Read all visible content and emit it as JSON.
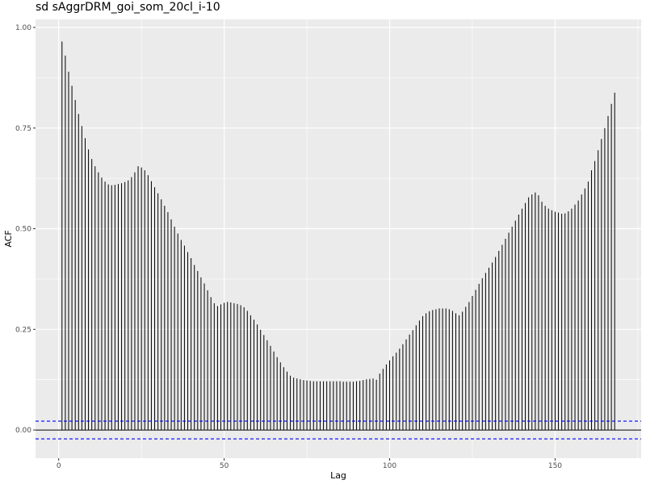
{
  "chart_data": {
    "type": "bar",
    "title": "sd sAggrDRM_goi_som_20cl_i-10",
    "xlabel": "Lag",
    "ylabel": "ACF",
    "xlim": [
      -7,
      176
    ],
    "ylim": [
      -0.07,
      1.02
    ],
    "x_ticks": [
      0,
      50,
      100,
      150
    ],
    "x_tick_labels": [
      "0",
      "50",
      "100",
      "150"
    ],
    "y_ticks": [
      0.0,
      0.25,
      0.5,
      0.75,
      1.0
    ],
    "y_tick_labels": [
      "0.00",
      "0.25",
      "0.50",
      "0.75",
      "1.00"
    ],
    "confidence_bound": 0.022,
    "grid": true,
    "background": "#ebebeb",
    "bar_color": "#000000",
    "ci_color": "#0000ff",
    "x": [
      1,
      2,
      3,
      4,
      5,
      6,
      7,
      8,
      9,
      10,
      11,
      12,
      13,
      14,
      15,
      16,
      17,
      18,
      19,
      20,
      21,
      22,
      23,
      24,
      25,
      26,
      27,
      28,
      29,
      30,
      31,
      32,
      33,
      34,
      35,
      36,
      37,
      38,
      39,
      40,
      41,
      42,
      43,
      44,
      45,
      46,
      47,
      48,
      49,
      50,
      51,
      52,
      53,
      54,
      55,
      56,
      57,
      58,
      59,
      60,
      61,
      62,
      63,
      64,
      65,
      66,
      67,
      68,
      69,
      70,
      71,
      72,
      73,
      74,
      75,
      76,
      77,
      78,
      79,
      80,
      81,
      82,
      83,
      84,
      85,
      86,
      87,
      88,
      89,
      90,
      91,
      92,
      93,
      94,
      95,
      96,
      97,
      98,
      99,
      100,
      101,
      102,
      103,
      104,
      105,
      106,
      107,
      108,
      109,
      110,
      111,
      112,
      113,
      114,
      115,
      116,
      117,
      118,
      119,
      120,
      121,
      122,
      123,
      124,
      125,
      126,
      127,
      128,
      129,
      130,
      131,
      132,
      133,
      134,
      135,
      136,
      137,
      138,
      139,
      140,
      141,
      142,
      143,
      144,
      145,
      146,
      147,
      148,
      149,
      150,
      151,
      152,
      153,
      154,
      155,
      156,
      157,
      158,
      159,
      160,
      161,
      162,
      163,
      164,
      165,
      166,
      167,
      168
    ],
    "values": [
      0.965,
      0.93,
      0.89,
      0.855,
      0.82,
      0.785,
      0.755,
      0.725,
      0.697,
      0.673,
      0.655,
      0.64,
      0.627,
      0.617,
      0.61,
      0.608,
      0.609,
      0.611,
      0.613,
      0.616,
      0.62,
      0.628,
      0.64,
      0.655,
      0.652,
      0.645,
      0.633,
      0.618,
      0.603,
      0.588,
      0.573,
      0.557,
      0.541,
      0.523,
      0.505,
      0.488,
      0.472,
      0.458,
      0.442,
      0.427,
      0.41,
      0.395,
      0.379,
      0.364,
      0.347,
      0.33,
      0.315,
      0.308,
      0.312,
      0.316,
      0.318,
      0.317,
      0.315,
      0.313,
      0.31,
      0.305,
      0.296,
      0.285,
      0.274,
      0.262,
      0.249,
      0.236,
      0.223,
      0.209,
      0.195,
      0.181,
      0.168,
      0.156,
      0.145,
      0.135,
      0.13,
      0.128,
      0.126,
      0.124,
      0.123,
      0.122,
      0.121,
      0.121,
      0.121,
      0.121,
      0.121,
      0.121,
      0.121,
      0.121,
      0.121,
      0.12,
      0.12,
      0.12,
      0.12,
      0.121,
      0.122,
      0.124,
      0.126,
      0.127,
      0.128,
      0.125,
      0.14,
      0.152,
      0.163,
      0.173,
      0.183,
      0.192,
      0.202,
      0.213,
      0.225,
      0.237,
      0.248,
      0.26,
      0.272,
      0.283,
      0.29,
      0.295,
      0.298,
      0.3,
      0.302,
      0.302,
      0.302,
      0.3,
      0.296,
      0.29,
      0.285,
      0.294,
      0.306,
      0.318,
      0.333,
      0.348,
      0.363,
      0.377,
      0.39,
      0.403,
      0.416,
      0.43,
      0.445,
      0.46,
      0.475,
      0.49,
      0.505,
      0.52,
      0.535,
      0.55,
      0.564,
      0.578,
      0.585,
      0.59,
      0.583,
      0.567,
      0.557,
      0.55,
      0.546,
      0.542,
      0.54,
      0.537,
      0.538,
      0.543,
      0.55,
      0.56,
      0.57,
      0.585,
      0.6,
      0.617,
      0.645,
      0.668,
      0.695,
      0.723,
      0.75,
      0.78,
      0.81,
      0.838
    ]
  }
}
